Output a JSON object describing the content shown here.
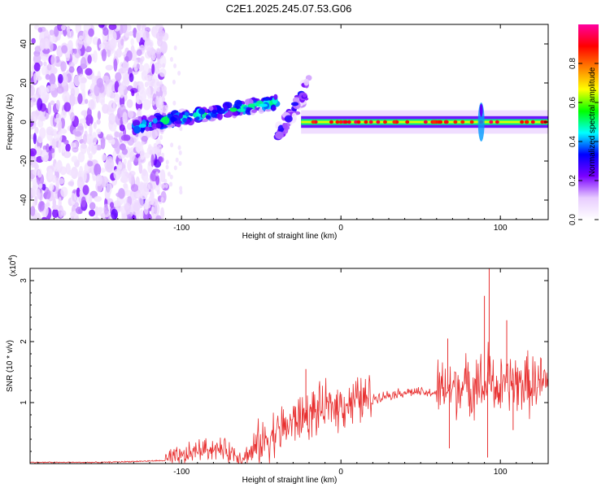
{
  "chart_data": [
    {
      "type": "heatmap",
      "title": "C2E1.2025.245.07.53.G06",
      "xlabel": "Height of straight line (km)",
      "ylabel": "Frequency (Hz)",
      "xlim": [
        -195,
        130
      ],
      "ylim": [
        -50,
        50
      ],
      "x_ticks": [
        -100,
        0,
        100
      ],
      "y_ticks": [
        -40,
        -20,
        0,
        20,
        40
      ],
      "colorbar": {
        "label": "Normalized spectral amplitude",
        "range": [
          0,
          1
        ],
        "ticks": [
          0.0,
          0.2,
          0.4,
          0.6,
          0.8
        ],
        "tick_labels": [
          "0.0",
          "0.2",
          "0.4",
          "0.6",
          "0.8"
        ],
        "colors": [
          "#ffffff",
          "#e8ccff",
          "#7a00ff",
          "#0000ff",
          "#00ffff",
          "#00ff00",
          "#ffff00",
          "#ff8000",
          "#ff0000",
          "#ff00a0"
        ]
      },
      "features": [
        {
          "name": "noise region",
          "x_range": [
            -195,
            -120
          ],
          "freq_range": [
            -50,
            50
          ],
          "amplitude": 0.15
        },
        {
          "name": "tilted signal band",
          "x_range": [
            -130,
            -40
          ],
          "freq_start": -2,
          "freq_end": 10,
          "amplitude": 0.45
        },
        {
          "name": "secondary tilted band",
          "x_range": [
            -40,
            -20
          ],
          "freq_start": -8,
          "freq_end": 20,
          "amplitude": 0.3
        },
        {
          "name": "steady carrier",
          "x_range": [
            -25,
            130
          ],
          "freq": 0,
          "amplitude": 0.85
        },
        {
          "name": "spike",
          "x": 88,
          "freq_range": [
            -10,
            10
          ],
          "amplitude": 0.4
        }
      ]
    },
    {
      "type": "line",
      "xlabel": "Height of straight line (km)",
      "ylabel": "SNR (10 * v/v)",
      "y_multiplier": "(x10^4)",
      "y_multiplier_base": "(x10",
      "y_multiplier_exp": "4",
      "y_multiplier_close": ")",
      "xlim": [
        -195,
        130
      ],
      "ylim": [
        0,
        3.2
      ],
      "x_ticks": [
        -100,
        0,
        100
      ],
      "y_ticks": [
        1,
        2,
        3
      ],
      "color": "#e83030",
      "series": [
        {
          "name": "SNR",
          "x": [
            -195,
            -150,
            -110,
            -100,
            -90,
            -80,
            -70,
            -62,
            -55,
            -45,
            -35,
            -25,
            -15,
            -5,
            5,
            15,
            25,
            35,
            45,
            55,
            65,
            70,
            75,
            80,
            85,
            88,
            90,
            92,
            95,
            100,
            105,
            110,
            120,
            130
          ],
          "y": [
            0.02,
            0.02,
            0.05,
            0.1,
            0.22,
            0.25,
            0.2,
            0.1,
            0.2,
            0.45,
            0.6,
            0.75,
            0.85,
            0.95,
            1.0,
            1.05,
            1.1,
            1.15,
            1.18,
            1.15,
            1.2,
            1.25,
            1.3,
            1.2,
            1.4,
            1.3,
            1.1,
            1.5,
            1.3,
            1.2,
            1.35,
            1.3,
            1.3,
            1.3
          ]
        }
      ],
      "spikes": [
        {
          "x": -22,
          "y": 1.55
        },
        {
          "x": -14,
          "y": 1.02
        },
        {
          "x": 67,
          "y": 2.05
        },
        {
          "x": 68,
          "y": 0.25
        },
        {
          "x": 90,
          "y": 2.75
        },
        {
          "x": 92,
          "y": 0.1
        },
        {
          "x": 93,
          "y": 3.2
        },
        {
          "x": 97,
          "y": 1.05
        },
        {
          "x": 104,
          "y": 2.35
        },
        {
          "x": 108,
          "y": 0.55
        }
      ]
    }
  ]
}
